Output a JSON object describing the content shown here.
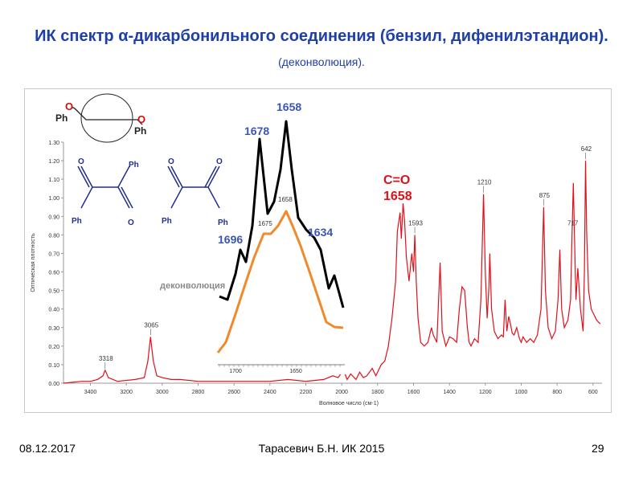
{
  "slide": {
    "title_main": "ИК спектр α-дикарбонильного соединения (бензил, дифенилэтандион).",
    "title_suffix": "(деконволюция).",
    "footer_date": "08.12.2017",
    "footer_author": "Тарасевич Б.Н.   ИК 2015",
    "footer_page": "29"
  },
  "chart_data": {
    "type": "line",
    "title": "",
    "xlabel": "Волновое число (см-1)",
    "ylabel": "Оптическая плотность",
    "x_reversed": true,
    "xlim": [
      3550,
      550
    ],
    "ylim": [
      0,
      1.3
    ],
    "x_ticks": [
      3400,
      3200,
      3000,
      2800,
      2600,
      2400,
      2200,
      2000,
      1800,
      1600,
      1400,
      1200,
      1000,
      800,
      600
    ],
    "y_ticks": [
      "0.00",
      "0.10",
      "0.20",
      "0.30",
      "0.40",
      "0.50",
      "0.60",
      "0.70",
      "0.80",
      "0.90",
      "1.00",
      "1.10",
      "1.20",
      "1.30"
    ],
    "grid": false,
    "series": [
      {
        "color": "#e0101a",
        "x": [
          3550,
          3450,
          3400,
          3360,
          3330,
          3318,
          3300,
          3250,
          3150,
          3100,
          3080,
          3065,
          3050,
          3030,
          3000,
          2950,
          2900,
          2800,
          2700,
          2600,
          2500,
          2400,
          2300,
          2200,
          2100,
          2050,
          2020,
          1990,
          1970,
          1950,
          1920,
          1900,
          1880,
          1860,
          1830,
          1810,
          1780,
          1760,
          1740,
          1720,
          1700,
          1690,
          1675,
          1668,
          1658,
          1650,
          1640,
          1625,
          1610,
          1600,
          1593,
          1585,
          1575,
          1560,
          1540,
          1520,
          1500,
          1490,
          1470,
          1452,
          1440,
          1420,
          1400,
          1380,
          1360,
          1345,
          1330,
          1315,
          1300,
          1290,
          1280,
          1260,
          1240,
          1225,
          1210,
          1200,
          1190,
          1180,
          1175,
          1165,
          1150,
          1130,
          1110,
          1100,
          1090,
          1080,
          1070,
          1060,
          1050,
          1040,
          1025,
          1010,
          1000,
          990,
          970,
          950,
          930,
          910,
          890,
          875,
          865,
          850,
          830,
          810,
          795,
          785,
          775,
          760,
          740,
          725,
          717,
          710,
          700,
          695,
          685,
          670,
          655,
          648,
          642,
          635,
          625,
          610,
          600,
          590,
          580,
          560
        ],
        "y": [
          0.0,
          0.01,
          0.01,
          0.02,
          0.04,
          0.07,
          0.03,
          0.01,
          0.02,
          0.03,
          0.12,
          0.25,
          0.12,
          0.04,
          0.03,
          0.02,
          0.02,
          0.01,
          0.01,
          0.01,
          0.01,
          0.01,
          0.02,
          0.01,
          0.02,
          0.04,
          0.03,
          0.07,
          0.02,
          0.05,
          0.02,
          0.06,
          0.03,
          0.04,
          0.08,
          0.04,
          0.1,
          0.12,
          0.2,
          0.35,
          0.55,
          0.82,
          0.92,
          0.78,
          0.97,
          0.88,
          0.68,
          0.55,
          0.7,
          0.6,
          0.8,
          0.55,
          0.35,
          0.22,
          0.2,
          0.22,
          0.3,
          0.26,
          0.22,
          0.65,
          0.28,
          0.2,
          0.25,
          0.24,
          0.22,
          0.4,
          0.52,
          0.5,
          0.3,
          0.22,
          0.2,
          0.24,
          0.22,
          0.45,
          1.02,
          0.6,
          0.35,
          0.52,
          0.7,
          0.4,
          0.28,
          0.24,
          0.26,
          0.25,
          0.45,
          0.28,
          0.36,
          0.32,
          0.27,
          0.26,
          0.3,
          0.24,
          0.22,
          0.25,
          0.22,
          0.24,
          0.22,
          0.26,
          0.4,
          0.95,
          0.5,
          0.3,
          0.24,
          0.28,
          0.45,
          0.72,
          0.4,
          0.3,
          0.34,
          0.45,
          0.8,
          1.08,
          0.65,
          0.45,
          0.62,
          0.4,
          0.28,
          0.6,
          1.2,
          0.8,
          0.5,
          0.4,
          0.38,
          0.36,
          0.34,
          0.32
        ]
      }
    ],
    "peak_labels": [
      {
        "x": 3318,
        "label": "3318"
      },
      {
        "x": 3065,
        "label": "3065"
      },
      {
        "x": 1593,
        "label": "1593"
      },
      {
        "x": 1210,
        "label": "1210"
      },
      {
        "x": 875,
        "label": "875"
      },
      {
        "x": 717,
        "label": "717"
      },
      {
        "x": 642,
        "label": "642"
      }
    ],
    "annotation_co": {
      "line1": "C=O",
      "line2": "1658"
    },
    "inset": {
      "label": "деконволюция",
      "x_ticks": [
        "1700",
        "1650"
      ],
      "black_peaks": [
        "1696",
        "1678",
        "1658",
        "1634"
      ],
      "orange_peaks": [
        "1675",
        "1658"
      ]
    },
    "structure_labels": {
      "ph": "Ph",
      "o": "O"
    }
  }
}
